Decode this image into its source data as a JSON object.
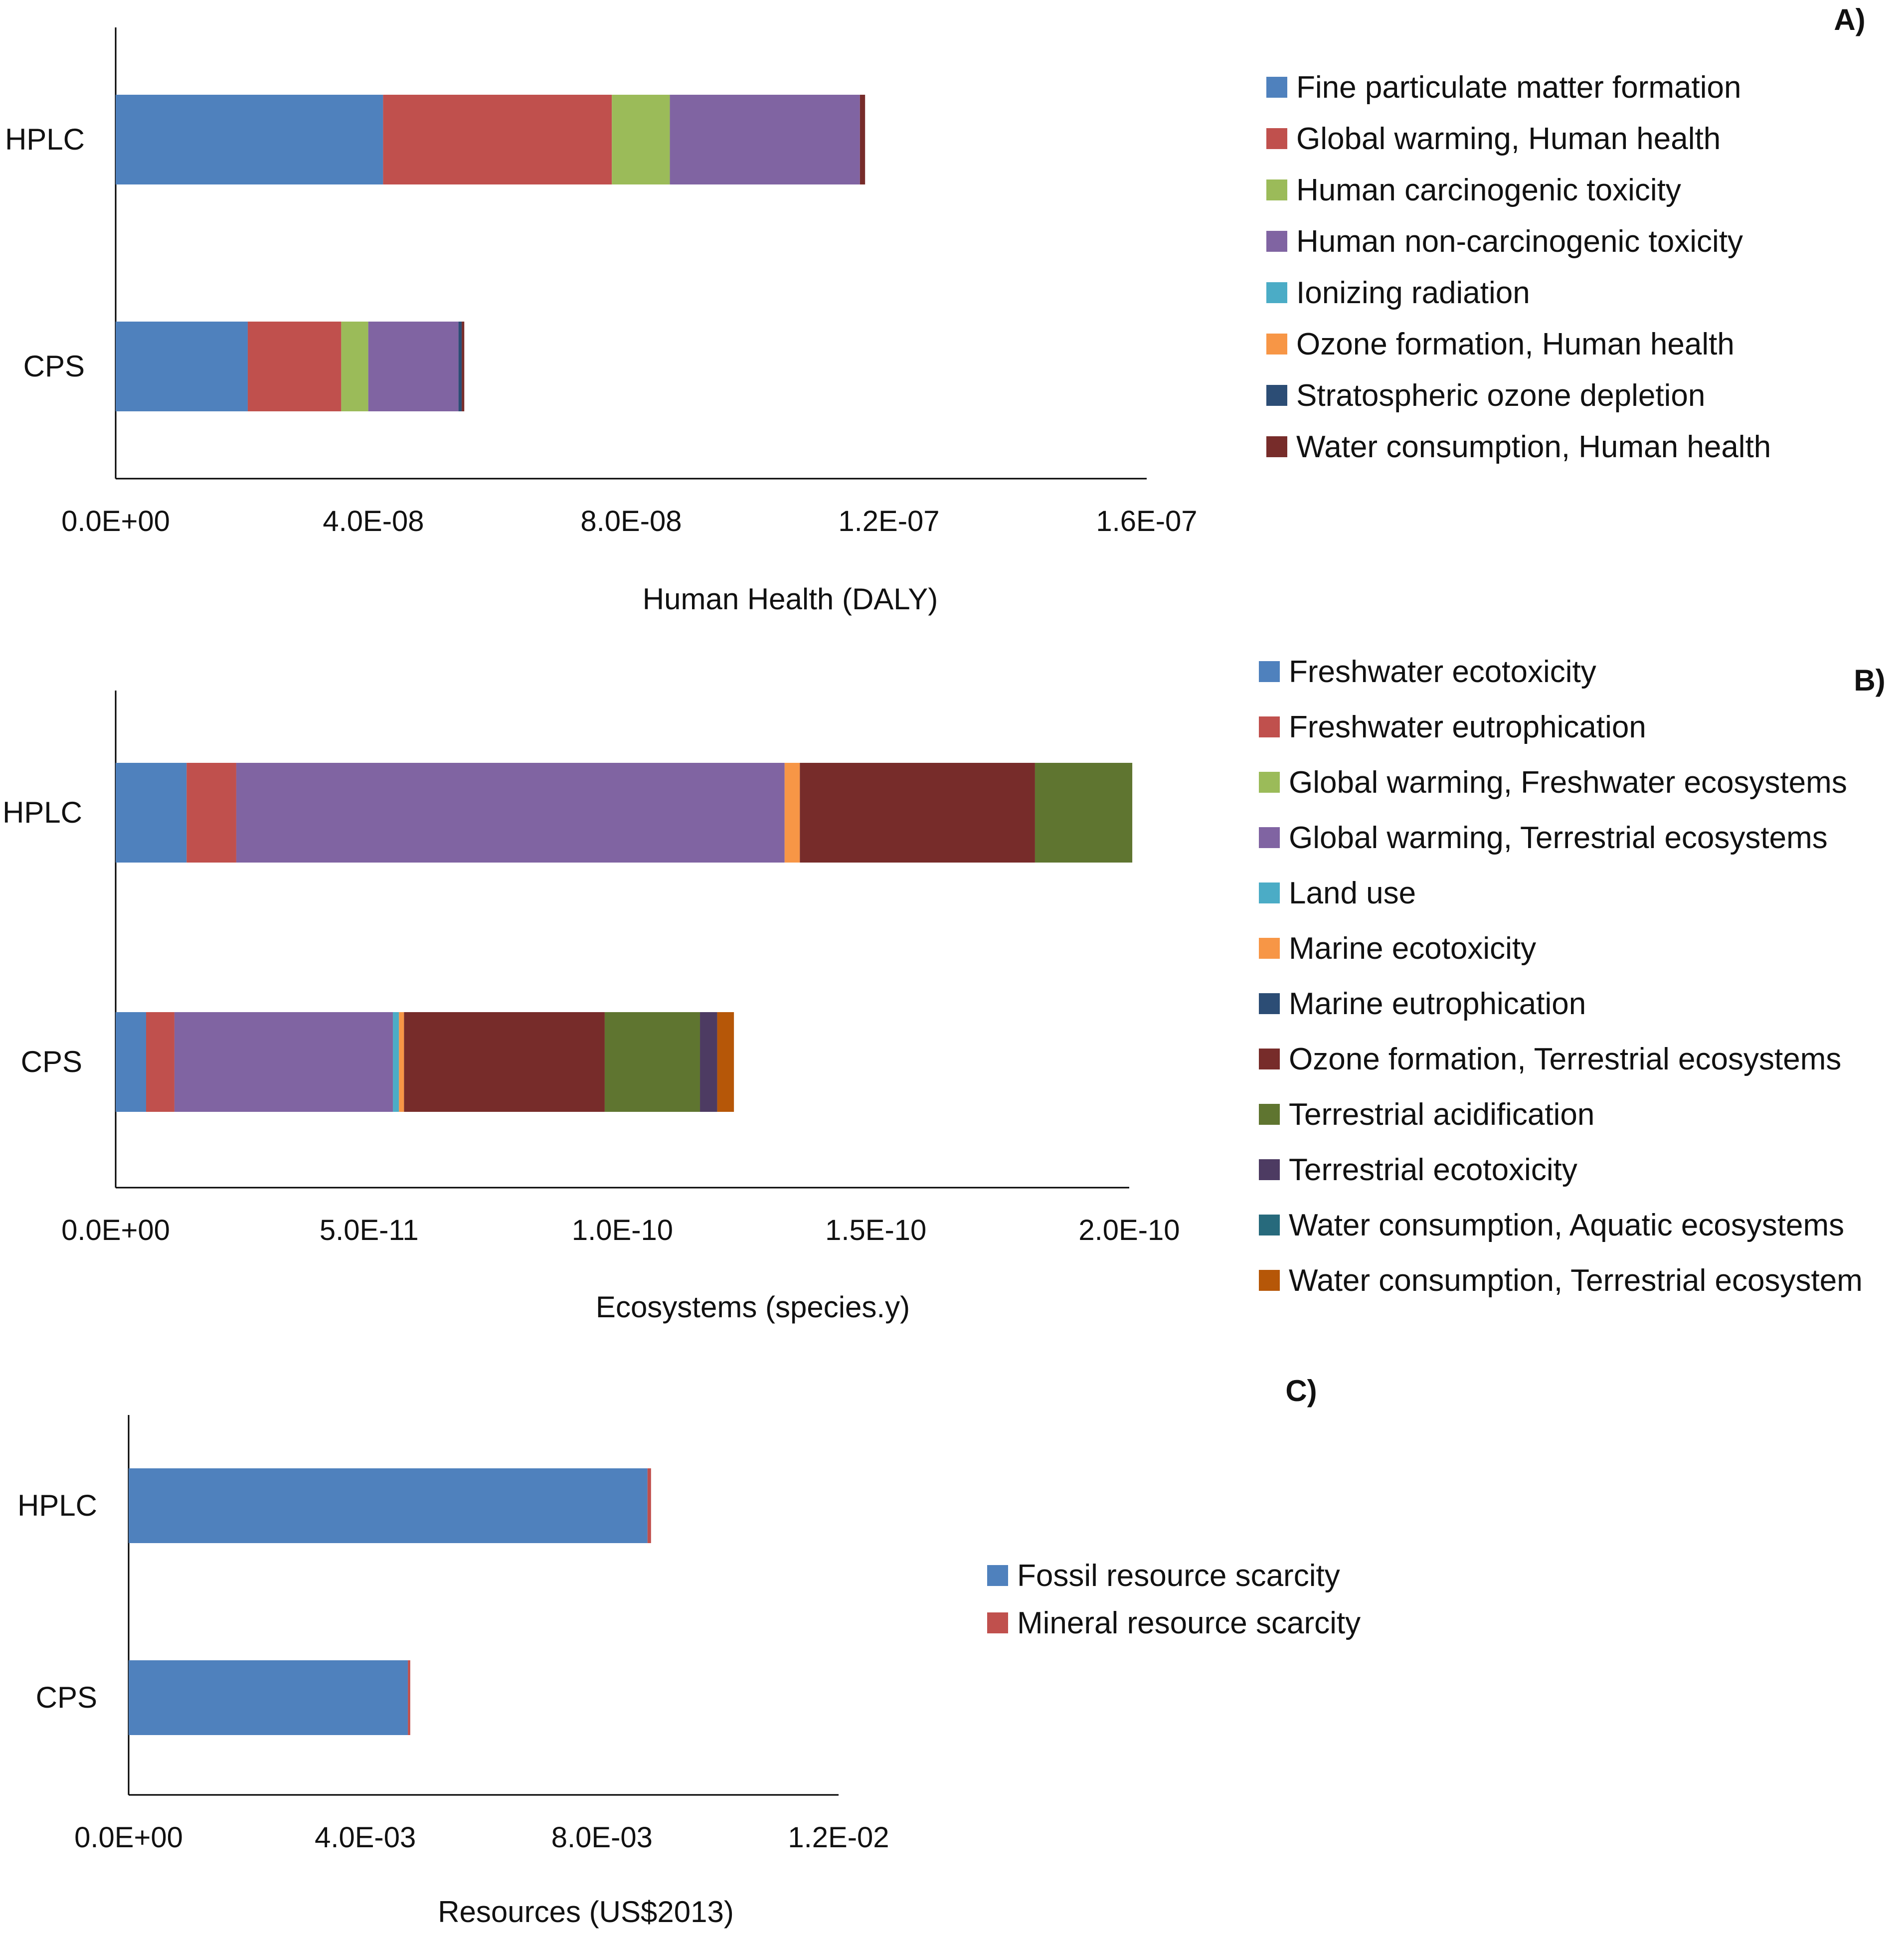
{
  "chart_data": [
    {
      "id": "A",
      "type": "bar",
      "orientation": "horizontal",
      "stacked": true,
      "panel_label": "A)",
      "xlabel": "Human Health (DALY)",
      "ylabel": "",
      "xlim": [
        0,
        1.6e-07
      ],
      "xticks": [
        0,
        4e-08,
        8e-08,
        1.2e-07,
        1.6e-07
      ],
      "xtick_labels": [
        "0.0E+00",
        "4.0E-08",
        "8.0E-08",
        "1.2E-07",
        "1.6E-07"
      ],
      "categories": [
        "HPLC",
        "CPS"
      ],
      "series": [
        {
          "name": "Fine particulate matter formation",
          "color": "#4F81BD",
          "values": [
            4.15e-08,
            2.05e-08
          ]
        },
        {
          "name": "Global warming, Human health",
          "color": "#C0504D",
          "values": [
            3.55e-08,
            1.45e-08
          ]
        },
        {
          "name": "Human carcinogenic toxicity",
          "color": "#9BBB59",
          "values": [
            9e-09,
            4.2e-09
          ]
        },
        {
          "name": "Human non-carcinogenic toxicity",
          "color": "#8064A2",
          "values": [
            2.95e-08,
            1.4e-08
          ]
        },
        {
          "name": "Ionizing radiation",
          "color": "#4BACC6",
          "values": [
            0,
            0
          ]
        },
        {
          "name": "Ozone formation, Human health",
          "color": "#F79646",
          "values": [
            0,
            0
          ]
        },
        {
          "name": "Stratospheric ozone depletion",
          "color": "#2C4D75",
          "values": [
            0,
            5e-10
          ]
        },
        {
          "name": "Water consumption, Human health",
          "color": "#772C2A",
          "values": [
            8e-10,
            4e-10
          ]
        }
      ],
      "legend_position": "right"
    },
    {
      "id": "B",
      "type": "bar",
      "orientation": "horizontal",
      "stacked": true,
      "panel_label": "B)",
      "xlabel": "Ecosystems (species.y)",
      "ylabel": "",
      "xlim": [
        0,
        2e-10
      ],
      "xticks": [
        0,
        5e-11,
        1e-10,
        1.5e-10,
        2e-10
      ],
      "xtick_labels": [
        "0.0E+00",
        "5.0E-11",
        "1.0E-10",
        "1.5E-10",
        "2.0E-10"
      ],
      "categories": [
        "HPLC",
        "CPS"
      ],
      "series": [
        {
          "name": "Freshwater ecotoxicity",
          "color": "#4F81BD",
          "values": [
            1.4e-11,
            6e-12
          ]
        },
        {
          "name": "Freshwater eutrophication",
          "color": "#C0504D",
          "values": [
            9.8e-12,
            5.6e-12
          ]
        },
        {
          "name": "Global warming, Freshwater ecosystems",
          "color": "#9BBB59",
          "values": [
            0,
            0
          ]
        },
        {
          "name": "Global warming, Terrestrial ecosystems",
          "color": "#8064A2",
          "values": [
            1.082e-10,
            4.31e-11
          ]
        },
        {
          "name": "Land use",
          "color": "#4BACC6",
          "values": [
            0,
            1.2e-12
          ]
        },
        {
          "name": "Marine ecotoxicity",
          "color": "#F79646",
          "values": [
            3e-12,
            1e-12
          ]
        },
        {
          "name": "Marine eutrophication",
          "color": "#2C4D75",
          "values": [
            0,
            0
          ]
        },
        {
          "name": "Ozone formation, Terrestrial ecosystems",
          "color": "#772C2A",
          "values": [
            4.64e-11,
            3.96e-11
          ]
        },
        {
          "name": "Terrestrial acidification",
          "color": "#5F7530",
          "values": [
            1.92e-11,
            1.88e-11
          ]
        },
        {
          "name": "Terrestrial ecotoxicity",
          "color": "#4D3B62",
          "values": [
            0,
            3.4e-12
          ]
        },
        {
          "name": "Water consumption, Aquatic ecosystems",
          "color": "#276A7C",
          "values": [
            0,
            0
          ]
        },
        {
          "name": "Water consumption, Terrestrial ecosystem",
          "color": "#B65708",
          "values": [
            0,
            3.3e-12
          ]
        }
      ],
      "legend_position": "right"
    },
    {
      "id": "C",
      "type": "bar",
      "orientation": "horizontal",
      "stacked": true,
      "panel_label": "C)",
      "xlabel": "Resources (US$2013)",
      "ylabel": "",
      "xlim": [
        0,
        0.012
      ],
      "xticks": [
        0,
        0.004,
        0.008,
        0.012
      ],
      "xtick_labels": [
        "0.0E+00",
        "4.0E-03",
        "8.0E-03",
        "1.2E-02"
      ],
      "categories": [
        "HPLC",
        "CPS"
      ],
      "series": [
        {
          "name": "Fossil resource scarcity",
          "color": "#4F81BD",
          "values": [
            0.00877,
            0.00472
          ]
        },
        {
          "name": "Mineral resource scarcity",
          "color": "#C0504D",
          "values": [
            6e-05,
            4e-05
          ]
        }
      ],
      "legend_position": "right"
    }
  ]
}
